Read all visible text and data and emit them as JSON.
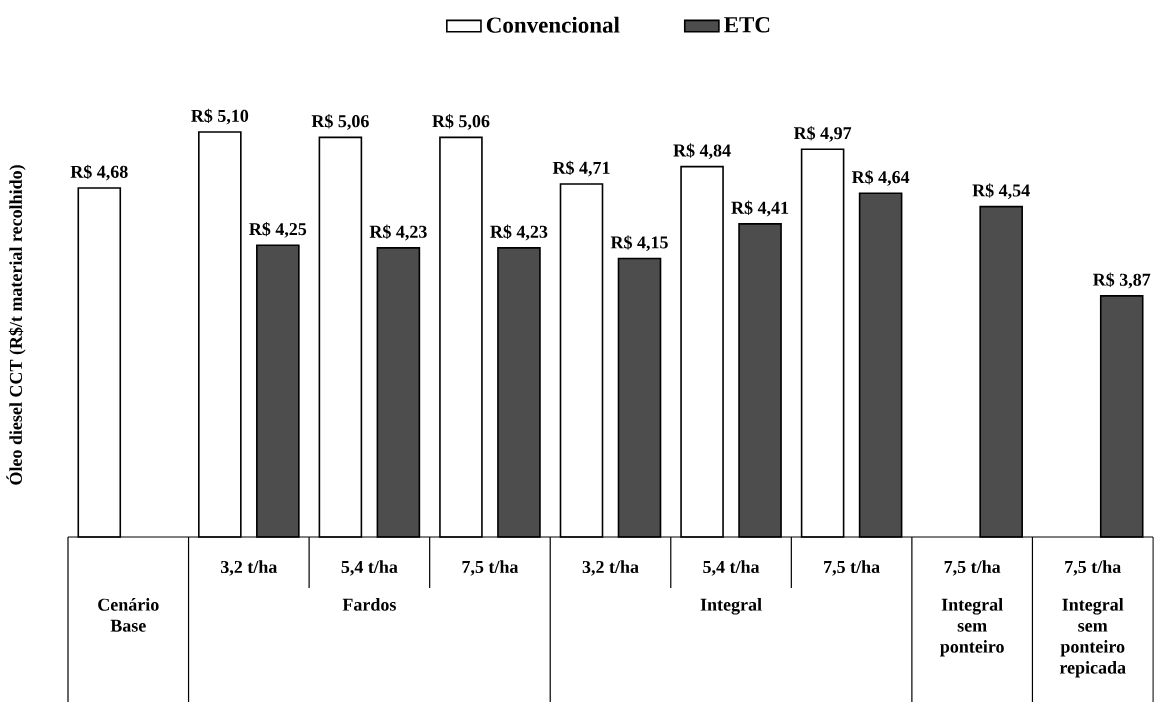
{
  "chart_data": {
    "type": "bar",
    "ylabel": "Óleo diesel CCT (R$/t material recolhido)",
    "categories": [
      null,
      "3,2 t/ha",
      "5,4 t/ha",
      "7,5 t/ha",
      "3,2 t/ha",
      "5,4 t/ha",
      "7,5 t/ha",
      "7,5 t/ha",
      "7,5 t/ha"
    ],
    "annotations": [
      "Cenário Base",
      "Fardos",
      "Integral",
      "Integral sem ponteiro",
      "Integral sem ponteiro repicada"
    ],
    "series": [
      {
        "name": "Convencional",
        "color": "#ffffff",
        "values": [
          4.68,
          5.1,
          5.06,
          5.06,
          4.71,
          4.84,
          4.97,
          null,
          null
        ],
        "value_labels": [
          "R$ 4,68",
          "R$ 5,10",
          "R$ 5,06",
          "R$ 5,06",
          "R$ 4,71",
          "R$ 4,84",
          "R$ 4,97",
          null,
          null
        ]
      },
      {
        "name": "ETC",
        "color": "#4d4d4d",
        "values": [
          null,
          4.25,
          4.23,
          4.23,
          4.15,
          4.41,
          4.64,
          4.54,
          3.87
        ],
        "value_labels": [
          null,
          "R$ 4,25",
          "R$ 4,23",
          "R$ 4,23",
          "R$ 4,15",
          "R$ 4,41",
          "R$ 4,64",
          "R$ 4,54",
          "R$ 3,87"
        ]
      }
    ],
    "ylim": [
      2.06,
      5.1
    ],
    "legend": "top"
  }
}
